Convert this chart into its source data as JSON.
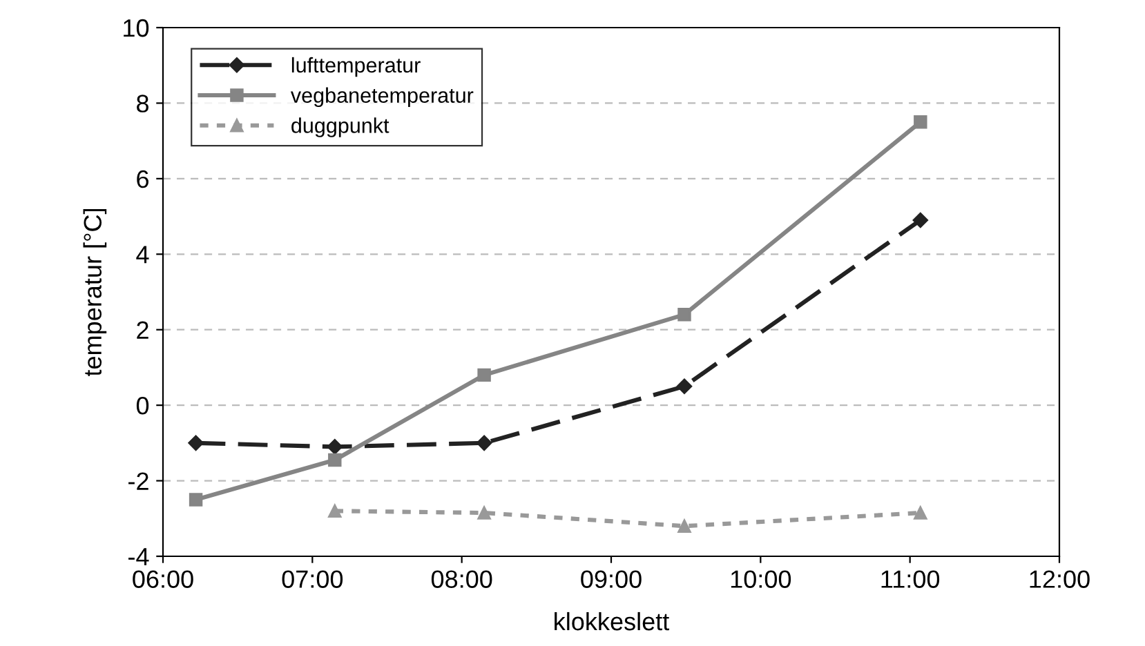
{
  "chart_data": {
    "type": "line",
    "xlabel": "klokkeslett",
    "ylabel": "temperatur [°C]",
    "xlim": [
      6,
      12
    ],
    "xticks": [
      {
        "value": 6,
        "label": "06:00"
      },
      {
        "value": 7,
        "label": "07:00"
      },
      {
        "value": 8,
        "label": "08:00"
      },
      {
        "value": 9,
        "label": "09:00"
      },
      {
        "value": 10,
        "label": "10:00"
      },
      {
        "value": 11,
        "label": "11:00"
      },
      {
        "value": 12,
        "label": "12:00"
      }
    ],
    "ylim": [
      -4,
      10
    ],
    "yticks": [
      -4,
      -2,
      0,
      2,
      4,
      6,
      8,
      10
    ],
    "grid": "y",
    "legend": "top left",
    "series": [
      {
        "name": "lufttemperatur",
        "color": "#222222",
        "marker": "diamond",
        "line_style": "dashed",
        "x": [
          6.22,
          7.15,
          8.15,
          9.49,
          11.07
        ],
        "values": [
          -1.0,
          -1.1,
          -1.0,
          0.5,
          4.9
        ]
      },
      {
        "name": "vegbanetemperatur",
        "color": "#858585",
        "marker": "square",
        "line_style": "solid",
        "x": [
          6.22,
          7.15,
          8.15,
          9.49,
          11.07
        ],
        "values": [
          -2.5,
          -1.45,
          0.8,
          2.4,
          7.5
        ]
      },
      {
        "name": "duggpunkt",
        "color": "#999999",
        "marker": "triangle",
        "line_style": "dotted",
        "x": [
          7.15,
          8.15,
          9.49,
          11.07
        ],
        "values": [
          -2.8,
          -2.85,
          -3.2,
          -2.85
        ]
      }
    ]
  }
}
